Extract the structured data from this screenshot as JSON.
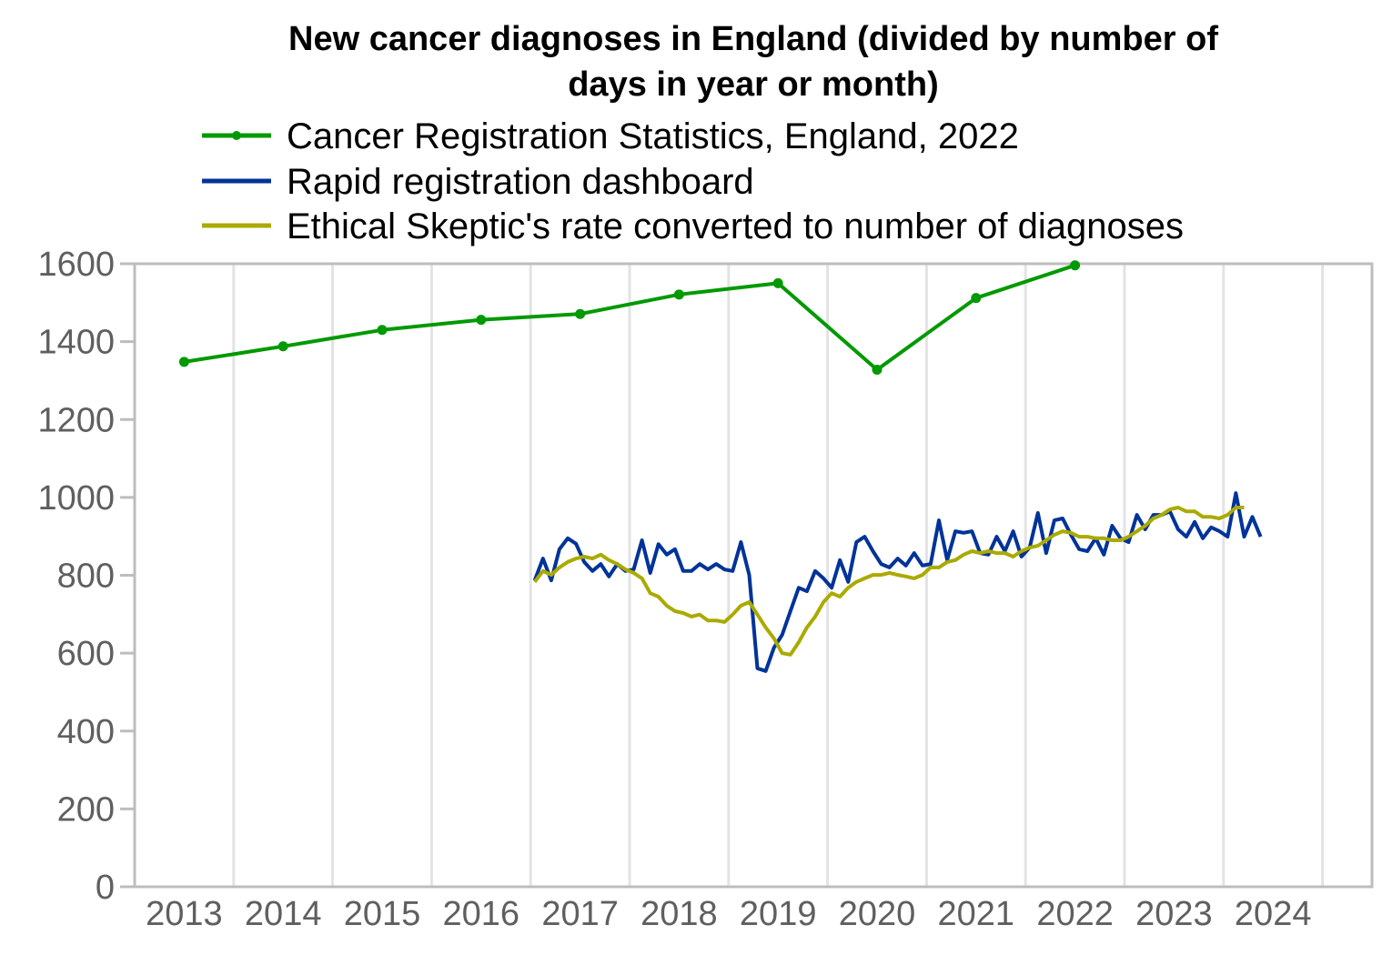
{
  "chart_data": {
    "type": "line",
    "title": "New cancer diagnoses in England (divided by number of days in year or month)",
    "title_lines": [
      "New cancer diagnoses in England (divided by number of",
      "days in year or month)"
    ],
    "xlabel": "",
    "ylabel": "",
    "xlim": [
      2013,
      2024.7
    ],
    "ylim": [
      0,
      1600
    ],
    "grid": "vertical",
    "legend_position": "top",
    "x_ticks": [
      "2013",
      "2014",
      "2015",
      "2016",
      "2017",
      "2018",
      "2019",
      "2020",
      "2021",
      "2022",
      "2023",
      "2024"
    ],
    "y_ticks": [
      "0",
      "200",
      "400",
      "600",
      "800",
      "1000",
      "1200",
      "1400",
      "1600"
    ],
    "series": [
      {
        "name": "Cancer Registration Statistics, England, 2022",
        "color": "#009900",
        "markers": true,
        "frequency": "yearly",
        "x": [
          2013,
          2014,
          2015,
          2016,
          2017,
          2018,
          2019,
          2020,
          2021,
          2022
        ],
        "values": [
          1348,
          1388,
          1430,
          1456,
          1471,
          1521,
          1550,
          1328,
          1512,
          1596
        ]
      },
      {
        "name": "Rapid registration dashboard",
        "color": "#003399",
        "markers": false,
        "frequency": "monthly",
        "start": "2017-01",
        "values": [
          787,
          843,
          787,
          867,
          895,
          881,
          834,
          811,
          829,
          797,
          829,
          811,
          815,
          890,
          806,
          880,
          853,
          867,
          811,
          811,
          829,
          815,
          829,
          815,
          811,
          885,
          801,
          561,
          554,
          614,
          647,
          708,
          768,
          759,
          811,
          792,
          768,
          839,
          783,
          885,
          899,
          862,
          829,
          820,
          843,
          825,
          857,
          825,
          829,
          941,
          839,
          913,
          909,
          913,
          857,
          853,
          899,
          862,
          913,
          848,
          871,
          960,
          857,
          941,
          946,
          904,
          867,
          862,
          895,
          853,
          927,
          895,
          885,
          955,
          918,
          955,
          955,
          964,
          918,
          899,
          937,
          895,
          923,
          913,
          899,
          1011,
          899,
          950,
          899
        ]
      },
      {
        "name": "Ethical Skeptic's rate converted to number of diagnoses",
        "color": "#aaaa00",
        "markers": false,
        "frequency": "monthly",
        "start": "2017-01",
        "values": [
          783,
          811,
          801,
          820,
          834,
          843,
          848,
          843,
          853,
          839,
          829,
          815,
          806,
          792,
          754,
          745,
          722,
          708,
          703,
          694,
          699,
          684,
          684,
          680,
          699,
          722,
          731,
          699,
          666,
          638,
          600,
          596,
          628,
          666,
          694,
          731,
          754,
          745,
          768,
          783,
          792,
          801,
          801,
          806,
          801,
          797,
          792,
          801,
          820,
          820,
          834,
          839,
          853,
          862,
          857,
          862,
          857,
          857,
          848,
          862,
          871,
          876,
          890,
          904,
          913,
          909,
          899,
          899,
          895,
          895,
          890,
          890,
          899,
          913,
          927,
          946,
          955,
          969,
          974,
          964,
          964,
          950,
          950,
          946,
          955,
          974,
          974
        ]
      }
    ]
  }
}
